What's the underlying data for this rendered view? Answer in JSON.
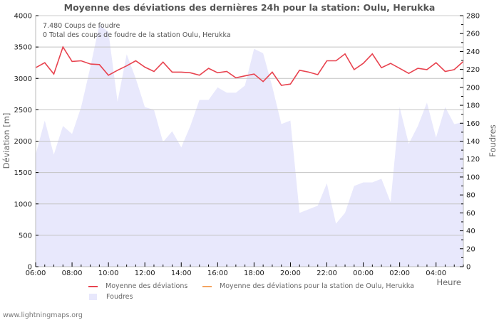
{
  "chart_data": {
    "type": "line",
    "title": "Moyenne des déviations des dernières 24h pour la station: Oulu, Herukka",
    "xlabel": "Heure",
    "ylabel": "Déviation  [m]",
    "y2label": "Foudres",
    "ylim": [
      0,
      4000
    ],
    "y2lim": [
      0,
      280
    ],
    "grid": true,
    "legend_position": "bottom",
    "x_tick_labels": [
      "06:00",
      "08:00",
      "10:00",
      "12:00",
      "14:00",
      "16:00",
      "18:00",
      "20:00",
      "22:00",
      "00:00",
      "02:00",
      "04:00"
    ],
    "y_tick_labels": [
      "0",
      "500",
      "1000",
      "1500",
      "2000",
      "2500",
      "3000",
      "3500",
      "4000"
    ],
    "y2_tick_labels": [
      "0",
      "20",
      "40",
      "60",
      "80",
      "100",
      "120",
      "140",
      "160",
      "180",
      "200",
      "220",
      "240",
      "260",
      "280"
    ],
    "x": [
      "06:00",
      "06:30",
      "07:00",
      "07:30",
      "08:00",
      "08:30",
      "09:00",
      "09:30",
      "10:00",
      "10:30",
      "11:00",
      "11:30",
      "12:00",
      "12:30",
      "13:00",
      "13:30",
      "14:00",
      "14:30",
      "15:00",
      "15:30",
      "16:00",
      "16:30",
      "17:00",
      "17:30",
      "18:00",
      "18:30",
      "19:00",
      "19:30",
      "20:00",
      "20:30",
      "21:00",
      "21:30",
      "22:00",
      "22:30",
      "23:00",
      "23:30",
      "00:00",
      "00:30",
      "01:00",
      "01:30",
      "02:00",
      "02:30",
      "03:00",
      "03:30",
      "04:00",
      "04:30",
      "05:00",
      "05:30"
    ],
    "series": [
      {
        "name": "Moyenne des déviations",
        "axis": "left",
        "color": "#e8434f",
        "style": "line",
        "values": [
          3170,
          3250,
          3070,
          3500,
          3270,
          3280,
          3230,
          3220,
          3050,
          3130,
          3200,
          3280,
          3180,
          3110,
          3260,
          3100,
          3100,
          3090,
          3050,
          3160,
          3090,
          3110,
          3010,
          3040,
          3070,
          2950,
          3100,
          2890,
          2910,
          3130,
          3100,
          3060,
          3280,
          3280,
          3390,
          3140,
          3240,
          3390,
          3170,
          3240,
          3160,
          3080,
          3160,
          3140,
          3250,
          3110,
          3140,
          3270
        ]
      },
      {
        "name": "Moyenne des déviations pour la station de Oulu, Herukka",
        "axis": "left",
        "color": "#f4a460",
        "style": "line",
        "values": []
      },
      {
        "name": "Foudres",
        "axis": "right",
        "color": "#e8e8fc",
        "style": "area",
        "values": [
          125,
          163,
          125,
          157,
          148,
          178,
          222,
          270,
          262,
          184,
          237,
          210,
          178,
          175,
          139,
          151,
          133,
          157,
          186,
          186,
          200,
          194,
          194,
          202,
          243,
          238,
          201,
          159,
          163,
          60,
          64,
          68,
          93,
          48,
          60,
          90,
          94,
          94,
          98,
          72,
          178,
          137,
          157,
          183,
          144,
          178,
          159,
          161
        ]
      }
    ],
    "annotations": [
      "7.480  Coups de foudre",
      "0 Total des coups de foudre de la station Oulu, Herukka"
    ]
  },
  "info": {
    "line1": "7.480  Coups de foudre",
    "line2": "0 Total des coups de foudre de la station Oulu, Herukka"
  },
  "legend": {
    "item1": "Moyenne des déviations",
    "item2": "Moyenne des déviations pour la station de Oulu, Herukka",
    "item3": "Foudres"
  },
  "footer": "www.lightningmaps.org"
}
